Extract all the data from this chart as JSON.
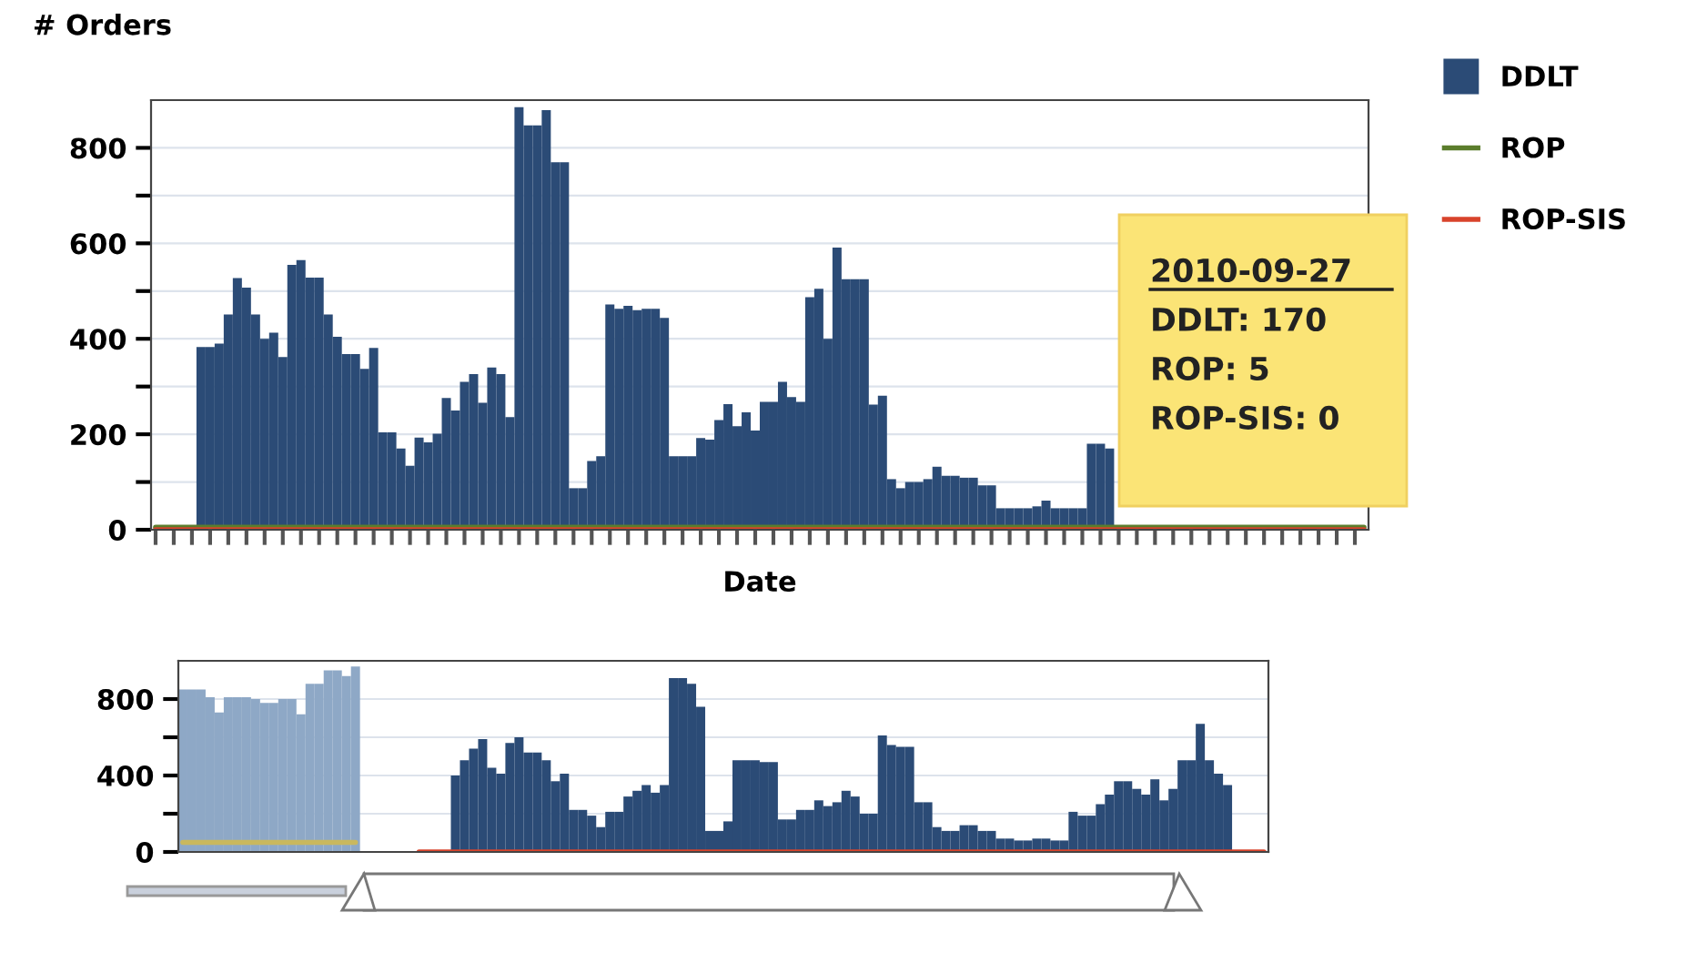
{
  "chart_data": [
    {
      "type": "bar",
      "xlabel": "Date",
      "ylabel": "# Orders",
      "legend": "top right",
      "grid": "y",
      "tick_labels": "y",
      "marker": "none",
      "categories": [
        null,
        null,
        null,
        null,
        null,
        null,
        null,
        null,
        null,
        null,
        null,
        null,
        null,
        null,
        null,
        null,
        null,
        null,
        null,
        null,
        null,
        null,
        null,
        null,
        null,
        null,
        null,
        null,
        null,
        null,
        null,
        null,
        null,
        null,
        null,
        null,
        null,
        null,
        null,
        null,
        null,
        null,
        null,
        null,
        null,
        null,
        null,
        null,
        null,
        null,
        null,
        null,
        null,
        null,
        null,
        null,
        null,
        null,
        null,
        null,
        null,
        null,
        null,
        null,
        null,
        null,
        null,
        null,
        null,
        null,
        null,
        null,
        null,
        null,
        null,
        null,
        null,
        null,
        null,
        null,
        null,
        null,
        null,
        null,
        null,
        null,
        null,
        null,
        null,
        null,
        null,
        null,
        null,
        null,
        null,
        null,
        null,
        null,
        null,
        null,
        null,
        null,
        null,
        null,
        null,
        null,
        null,
        null,
        null,
        null,
        null,
        null,
        null,
        null,
        null,
        null,
        null,
        null,
        null,
        null,
        null,
        null,
        null,
        null,
        null,
        null,
        null,
        null,
        null,
        null,
        null,
        null,
        null,
        null
      ],
      "ylim": [
        0,
        900
      ],
      "yticks": [
        0,
        {
          "value": 100,
          "label": null
        },
        200,
        {
          "value": 300,
          "label": null
        },
        400,
        {
          "value": 500,
          "label": null
        },
        600,
        {
          "value": 700,
          "label": null
        },
        800
      ],
      "series": [
        {
          "name": "DDLT",
          "color": "#2b4b76",
          "values": [
            0,
            0,
            0,
            0,
            0,
            383,
            383,
            390,
            451,
            527,
            507,
            451,
            400,
            413,
            362,
            555,
            565,
            528,
            528,
            451,
            404,
            368,
            368,
            337,
            381,
            204,
            204,
            170,
            134,
            193,
            183,
            201,
            276,
            250,
            310,
            326,
            266,
            340,
            326,
            236,
            885,
            847,
            847,
            879,
            770,
            770,
            87,
            87,
            144,
            154,
            472,
            463,
            469,
            460,
            463,
            463,
            444,
            154,
            154,
            154,
            192,
            189,
            230,
            263,
            217,
            246,
            208,
            268,
            268,
            310,
            278,
            268,
            487,
            505,
            400,
            591,
            525,
            525,
            525,
            262,
            281,
            106,
            87,
            100,
            100,
            106,
            132,
            113,
            113,
            109,
            109,
            93,
            93,
            45,
            45,
            45,
            45,
            49,
            61,
            45,
            45,
            45,
            45,
            180,
            180,
            170,
            null,
            null,
            null,
            null,
            null,
            null,
            null,
            null,
            null,
            null,
            null,
            null,
            null,
            null,
            null,
            null,
            null,
            null,
            null,
            null,
            null,
            0,
            0,
            0,
            0,
            0,
            0,
            0
          ]
        },
        {
          "name": "ROP",
          "type": "line",
          "color": "#5b7d2c",
          "values": [
            5,
            5,
            5,
            5,
            5,
            5,
            5,
            5,
            5,
            5,
            5,
            5,
            5,
            5,
            5,
            5,
            5,
            5,
            5,
            5,
            5,
            5,
            5,
            5,
            5,
            5,
            5,
            5,
            5,
            5,
            5,
            5,
            5,
            5,
            5,
            5,
            5,
            5,
            5,
            5,
            5,
            5,
            5,
            5,
            5,
            5,
            5,
            5,
            5,
            5,
            5,
            5,
            5,
            5,
            5,
            5,
            5,
            5,
            5,
            5,
            5,
            5,
            5,
            5,
            5,
            5,
            5,
            5,
            5,
            5,
            5,
            5,
            5,
            5,
            5,
            5,
            5,
            5,
            5,
            5,
            5,
            5,
            5,
            5,
            5,
            5,
            5,
            5,
            5,
            5,
            5,
            5,
            5,
            5,
            5,
            5,
            5,
            5,
            5,
            5,
            5,
            5,
            5,
            5,
            5,
            5,
            5,
            5,
            5,
            5,
            5,
            5,
            5,
            5,
            5,
            5,
            5,
            5,
            5,
            5,
            5,
            5,
            5,
            5,
            5,
            5,
            5,
            5,
            5,
            5,
            5,
            5,
            5,
            5
          ]
        },
        {
          "name": "ROP-SIS",
          "type": "line",
          "color": "#d8432b",
          "values": [
            0,
            0,
            0,
            0,
            0,
            0,
            0,
            0,
            0,
            0,
            0,
            0,
            0,
            0,
            0,
            0,
            0,
            0,
            0,
            0,
            0,
            0,
            0,
            0,
            0,
            0,
            0,
            0,
            0,
            0,
            0,
            0,
            0,
            0,
            0,
            0,
            0,
            0,
            0,
            0,
            0,
            0,
            0,
            0,
            0,
            0,
            0,
            0,
            0,
            0,
            0,
            0,
            0,
            0,
            0,
            0,
            0,
            0,
            0,
            0,
            0,
            0,
            0,
            0,
            0,
            0,
            0,
            0,
            0,
            0,
            0,
            0,
            0,
            0,
            0,
            0,
            0,
            0,
            0,
            0,
            0,
            0,
            0,
            0,
            0,
            0,
            0,
            0,
            0,
            0,
            0,
            0,
            0,
            0,
            0,
            0,
            0,
            0,
            0,
            0,
            0,
            0,
            0,
            0,
            0,
            0,
            0,
            0,
            0,
            0,
            0,
            0,
            0,
            0,
            0,
            0,
            0,
            0,
            0,
            0,
            0,
            0,
            0,
            0,
            0,
            0,
            0,
            0,
            0,
            0,
            0,
            0,
            0,
            0
          ]
        }
      ],
      "annotations": [
        "2010-09-27",
        "DDLT: 170",
        "ROP: 5",
        "ROP-SIS: 0"
      ]
    },
    {
      "type": "bar",
      "grid": "y",
      "tick_labels": "y",
      "marker": "none",
      "categories": [
        null,
        null,
        null,
        null,
        null,
        null,
        null,
        null,
        null,
        null,
        null,
        null,
        null,
        null,
        null,
        null,
        null,
        null,
        null,
        null,
        null,
        null,
        null,
        null,
        null,
        null,
        null,
        null,
        null,
        null,
        null,
        null,
        null,
        null,
        null,
        null,
        null,
        null,
        null,
        null,
        null,
        null,
        null,
        null,
        null,
        null,
        null,
        null,
        null,
        null,
        null,
        null,
        null,
        null,
        null,
        null,
        null,
        null,
        null,
        null,
        null,
        null,
        null,
        null,
        null,
        null,
        null,
        null,
        null,
        null,
        null,
        null,
        null,
        null,
        null,
        null,
        null,
        null,
        null,
        null,
        null,
        null,
        null,
        null,
        null,
        null,
        null,
        null,
        null,
        null,
        null,
        null,
        null,
        null,
        null,
        null,
        null,
        null,
        null,
        null,
        null,
        null,
        null,
        null,
        null,
        null,
        null,
        null,
        null,
        null,
        null,
        null,
        null,
        null,
        null,
        null,
        null,
        null,
        null,
        null
      ],
      "ylim": [
        0,
        1000
      ],
      "yticks": [
        0,
        {
          "value": 200,
          "label": null
        },
        400,
        {
          "value": 600,
          "label": null
        },
        800
      ],
      "series": [
        {
          "color": "#8ea8c6",
          "values": [
            850,
            850,
            850,
            810,
            730,
            810,
            810,
            810,
            800,
            780,
            780,
            800,
            800,
            720,
            880,
            880,
            950,
            950,
            920,
            970,
            null,
            null,
            null,
            null,
            null,
            null,
            null,
            null,
            null,
            null,
            null,
            null,
            null,
            null,
            null,
            null,
            null,
            null,
            null,
            null,
            null,
            null,
            null,
            null,
            null,
            null,
            null,
            null,
            null,
            null,
            null,
            null,
            null,
            null,
            null,
            null,
            null,
            null,
            null,
            null,
            null,
            null,
            null,
            null,
            null,
            null,
            null,
            null,
            null,
            null,
            null,
            null,
            null,
            null,
            null,
            null,
            null,
            null,
            null,
            null,
            null,
            null,
            null,
            null,
            null,
            null,
            null,
            null,
            null,
            null,
            null,
            null,
            null,
            null,
            null,
            null,
            null,
            null,
            null,
            null,
            null,
            null,
            null,
            null,
            null,
            null,
            null,
            null,
            null,
            null,
            null,
            null,
            null,
            null,
            null,
            null,
            null,
            null,
            null,
            null
          ]
        },
        {
          "color": "#2b4b76",
          "values": [
            null,
            null,
            null,
            null,
            null,
            null,
            null,
            null,
            null,
            null,
            null,
            null,
            null,
            null,
            null,
            null,
            null,
            null,
            null,
            null,
            null,
            null,
            null,
            null,
            null,
            null,
            null,
            null,
            null,
            null,
            400,
            480,
            540,
            590,
            440,
            410,
            570,
            600,
            520,
            520,
            480,
            370,
            410,
            220,
            220,
            190,
            130,
            210,
            210,
            290,
            320,
            350,
            310,
            350,
            910,
            910,
            880,
            760,
            110,
            110,
            160,
            480,
            480,
            480,
            470,
            470,
            170,
            170,
            220,
            220,
            270,
            240,
            260,
            320,
            290,
            200,
            200,
            610,
            560,
            550,
            550,
            260,
            260,
            130,
            110,
            110,
            140,
            140,
            110,
            110,
            70,
            70,
            60,
            60,
            70,
            70,
            60,
            60,
            210,
            190,
            190,
            250,
            300,
            370,
            370,
            330,
            300,
            380,
            270,
            330,
            480,
            480,
            670,
            480,
            410,
            350,
            null,
            null,
            null,
            null
          ]
        },
        {
          "type": "line",
          "color": "#c9b85e",
          "values": [
            50,
            50,
            50,
            50,
            50,
            50,
            50,
            50,
            50,
            50,
            50,
            50,
            50,
            50,
            50,
            50,
            50,
            50,
            50,
            50,
            null,
            null,
            null,
            null,
            null,
            null,
            null,
            null,
            null,
            null,
            null,
            null,
            null,
            null,
            null,
            null,
            null,
            null,
            null,
            null,
            null,
            null,
            null,
            null,
            null,
            null,
            null,
            null,
            null,
            null,
            null,
            null,
            null,
            null,
            null,
            null,
            null,
            null,
            null,
            null,
            null,
            null,
            null,
            null,
            null,
            null,
            null,
            null,
            null,
            null,
            null,
            null,
            null,
            null,
            null,
            null,
            null,
            null,
            null,
            null,
            null,
            null,
            null,
            null,
            null,
            null,
            null,
            null,
            null,
            null,
            null,
            null,
            null,
            null,
            null,
            null,
            null,
            null,
            null,
            null,
            null,
            null,
            null,
            null,
            null,
            null,
            null,
            null,
            null,
            null,
            null,
            null,
            null,
            null,
            null,
            null,
            null,
            null,
            null,
            null
          ]
        },
        {
          "type": "line",
          "color": "#d8432b",
          "values": [
            null,
            null,
            null,
            null,
            null,
            null,
            null,
            null,
            null,
            null,
            null,
            null,
            null,
            null,
            null,
            null,
            null,
            null,
            null,
            null,
            null,
            null,
            null,
            null,
            null,
            null,
            0,
            0,
            0,
            0,
            0,
            0,
            0,
            0,
            0,
            0,
            0,
            0,
            0,
            0,
            0,
            0,
            0,
            0,
            0,
            0,
            0,
            0,
            0,
            0,
            0,
            0,
            0,
            0,
            0,
            0,
            0,
            0,
            0,
            0,
            0,
            0,
            0,
            0,
            0,
            0,
            0,
            0,
            0,
            0,
            0,
            0,
            0,
            0,
            0,
            0,
            0,
            0,
            0,
            0,
            0,
            0,
            0,
            0,
            0,
            0,
            0,
            0,
            0,
            0,
            0,
            0,
            0,
            0,
            0,
            0,
            0,
            0,
            0,
            0,
            0,
            0,
            0,
            0,
            0,
            0,
            0,
            0,
            0,
            0,
            0,
            0,
            0,
            0,
            0,
            0,
            0,
            0,
            0,
            0
          ]
        }
      ]
    }
  ]
}
